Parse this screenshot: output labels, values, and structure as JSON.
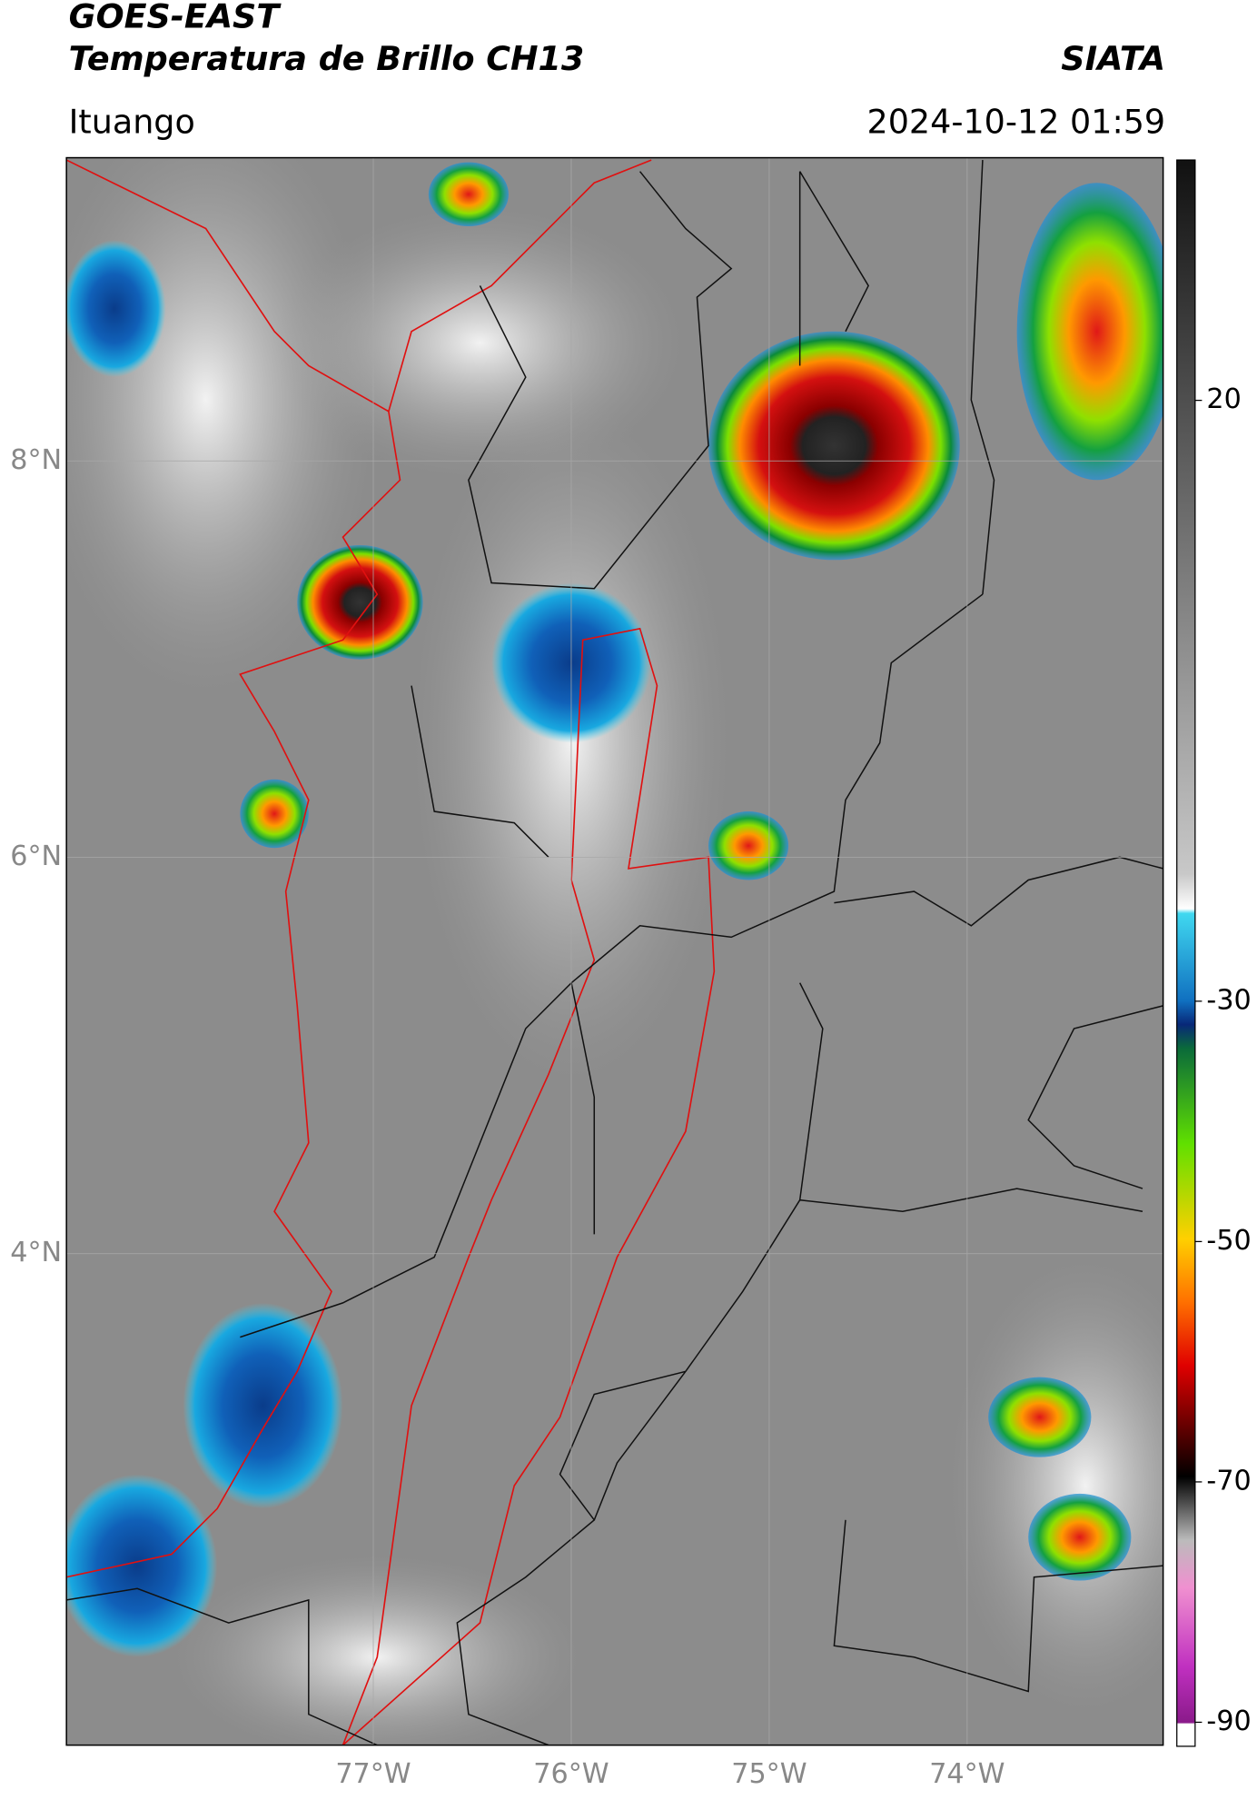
{
  "header": {
    "title_line1": "GOES-EAST",
    "title_line2": "Temperatura de Brillo CH13",
    "source": "SIATA",
    "location": "Ituango",
    "datetime": "2024-10-12 01:59"
  },
  "map": {
    "xlim": [
      -78.55,
      -73.01
    ],
    "ylim": [
      1.52,
      9.53
    ],
    "lat_ticks": [
      {
        "value": 8,
        "label": "8°N"
      },
      {
        "value": 6,
        "label": "6°N"
      },
      {
        "value": 4,
        "label": "4°N"
      }
    ],
    "lon_ticks": [
      {
        "value": -77,
        "label": "77°W"
      },
      {
        "value": -76,
        "label": "76°W"
      },
      {
        "value": -75,
        "label": "75°W"
      },
      {
        "value": -74,
        "label": "74°W"
      }
    ]
  },
  "colorbar": {
    "lim": [
      -92,
      40
    ],
    "ticks": [
      20,
      -30,
      -50,
      -70,
      -90
    ]
  }
}
